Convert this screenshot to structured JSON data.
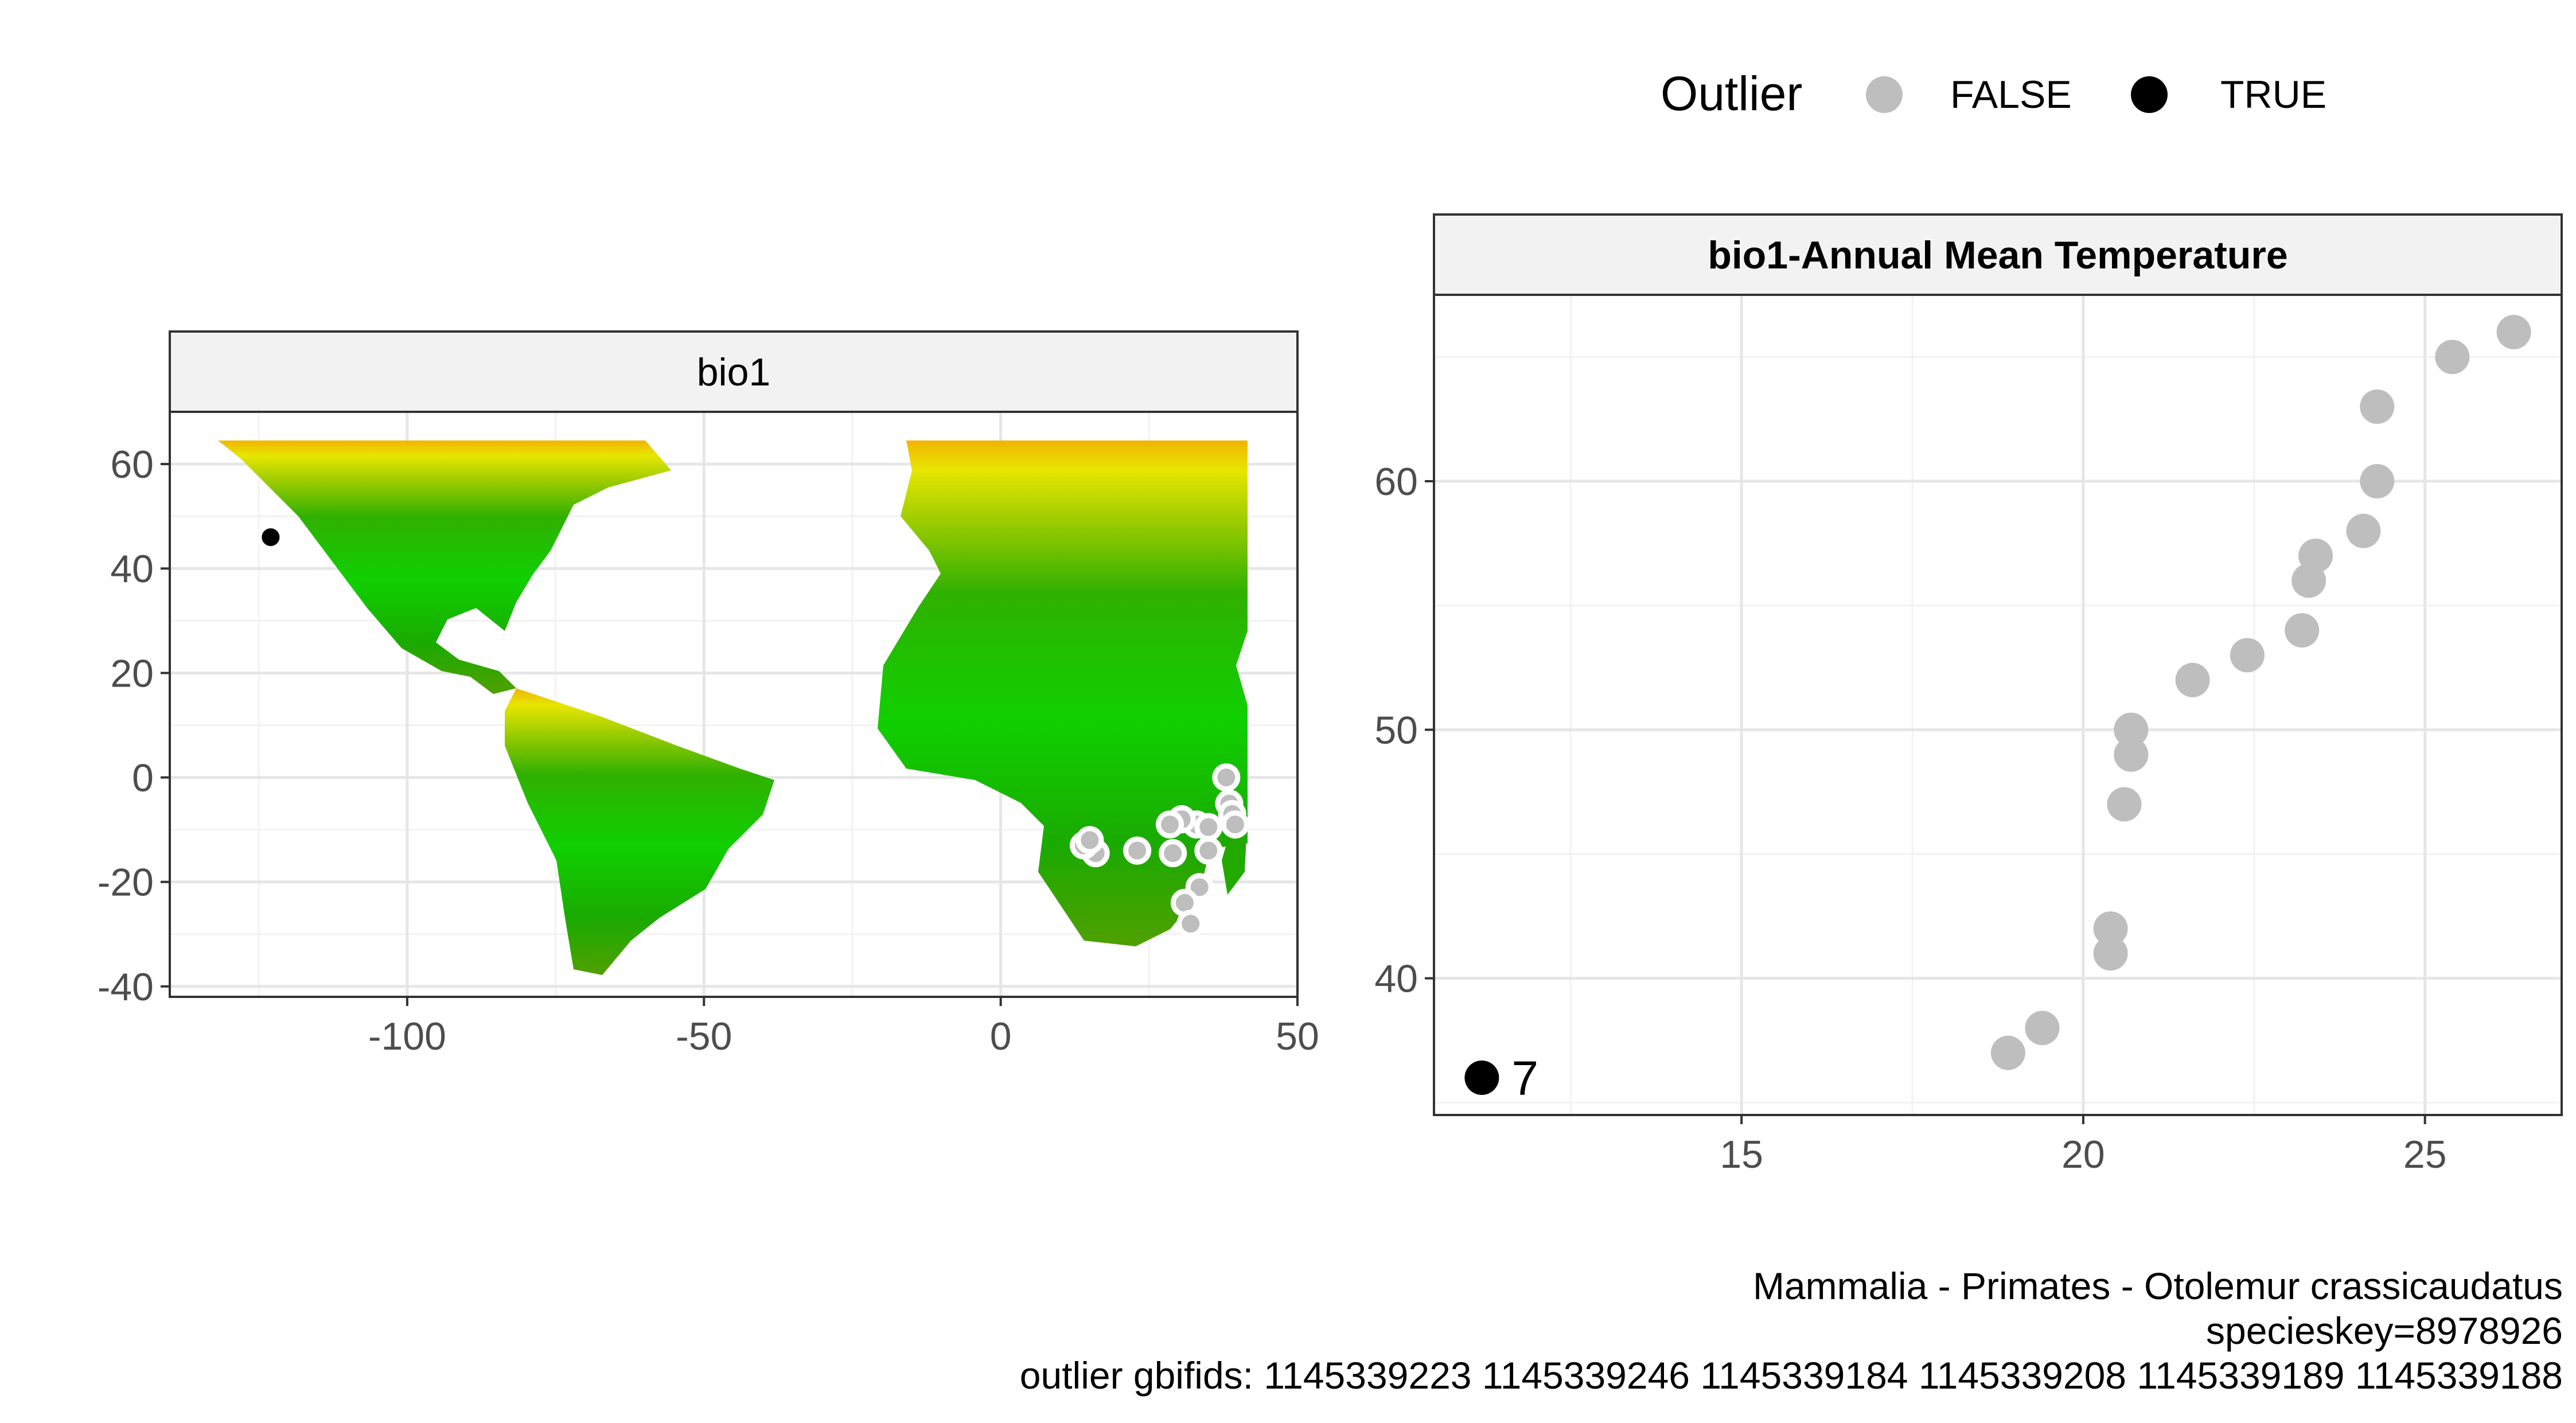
{
  "legend": {
    "title": "Outlier",
    "items": [
      {
        "label": "FALSE",
        "color": "#bebebe"
      },
      {
        "label": "TRUE",
        "color": "#000000"
      }
    ]
  },
  "chart_data": [
    {
      "type": "scatter",
      "title": "bio1",
      "background": "raster map of bio1 (yellow-green gradient) over the Americas and Africa",
      "xlim": [
        -140,
        50
      ],
      "ylim": [
        -42,
        70
      ],
      "x_ticks": [
        "-100",
        "-50",
        "0",
        "50"
      ],
      "y_ticks": [
        "-40",
        "-20",
        "0",
        "20",
        "40",
        "60"
      ],
      "grid": true,
      "series": [
        {
          "name": "FALSE",
          "color": "#bebebe",
          "points": [
            [
              38,
              0
            ],
            [
              38.5,
              -5
            ],
            [
              39,
              -7
            ],
            [
              39.5,
              -9
            ],
            [
              33,
              -9
            ],
            [
              30.5,
              -8
            ],
            [
              28.5,
              -9
            ],
            [
              35,
              -9.5
            ],
            [
              35,
              -14
            ],
            [
              29,
              -14.5
            ],
            [
              23,
              -14
            ],
            [
              16,
              -14.5
            ],
            [
              14,
              -13
            ],
            [
              15,
              -12
            ],
            [
              33.5,
              -21
            ],
            [
              31,
              -24
            ],
            [
              32,
              -28
            ]
          ]
        },
        {
          "name": "TRUE",
          "color": "#000000",
          "points": [
            [
              -123,
              46
            ]
          ]
        }
      ]
    },
    {
      "type": "scatter",
      "title": "bio1-Annual Mean Temperature",
      "xlim": [
        10.5,
        27
      ],
      "ylim": [
        34.5,
        67.5
      ],
      "x_ticks": [
        "15",
        "20",
        "25"
      ],
      "y_ticks": [
        "40",
        "50",
        "60"
      ],
      "grid": true,
      "series": [
        {
          "name": "FALSE",
          "color": "#bebebe",
          "points": [
            [
              18.9,
              37
            ],
            [
              19.4,
              38
            ],
            [
              20.4,
              41
            ],
            [
              20.4,
              42
            ],
            [
              20.6,
              47
            ],
            [
              20.7,
              49
            ],
            [
              20.7,
              50
            ],
            [
              21.6,
              52
            ],
            [
              22.4,
              53
            ],
            [
              23.2,
              54
            ],
            [
              23.3,
              56
            ],
            [
              23.4,
              57
            ],
            [
              24.1,
              58
            ],
            [
              24.3,
              60
            ],
            [
              24.3,
              63
            ],
            [
              25.4,
              65
            ],
            [
              26.3,
              66
            ]
          ]
        },
        {
          "name": "TRUE",
          "color": "#000000",
          "points": [
            [
              11.2,
              36
            ]
          ]
        }
      ],
      "annotations": [
        {
          "x": 11.2,
          "y": 36,
          "text": "7"
        }
      ]
    }
  ],
  "caption": {
    "line1": "Mammalia - Primates - Otolemur crassicaudatus",
    "line2": "specieskey=8978926",
    "line3": "outlier gbifids: 1145339223 1145339246 1145339184 1145339208 1145339189 1145339188"
  }
}
